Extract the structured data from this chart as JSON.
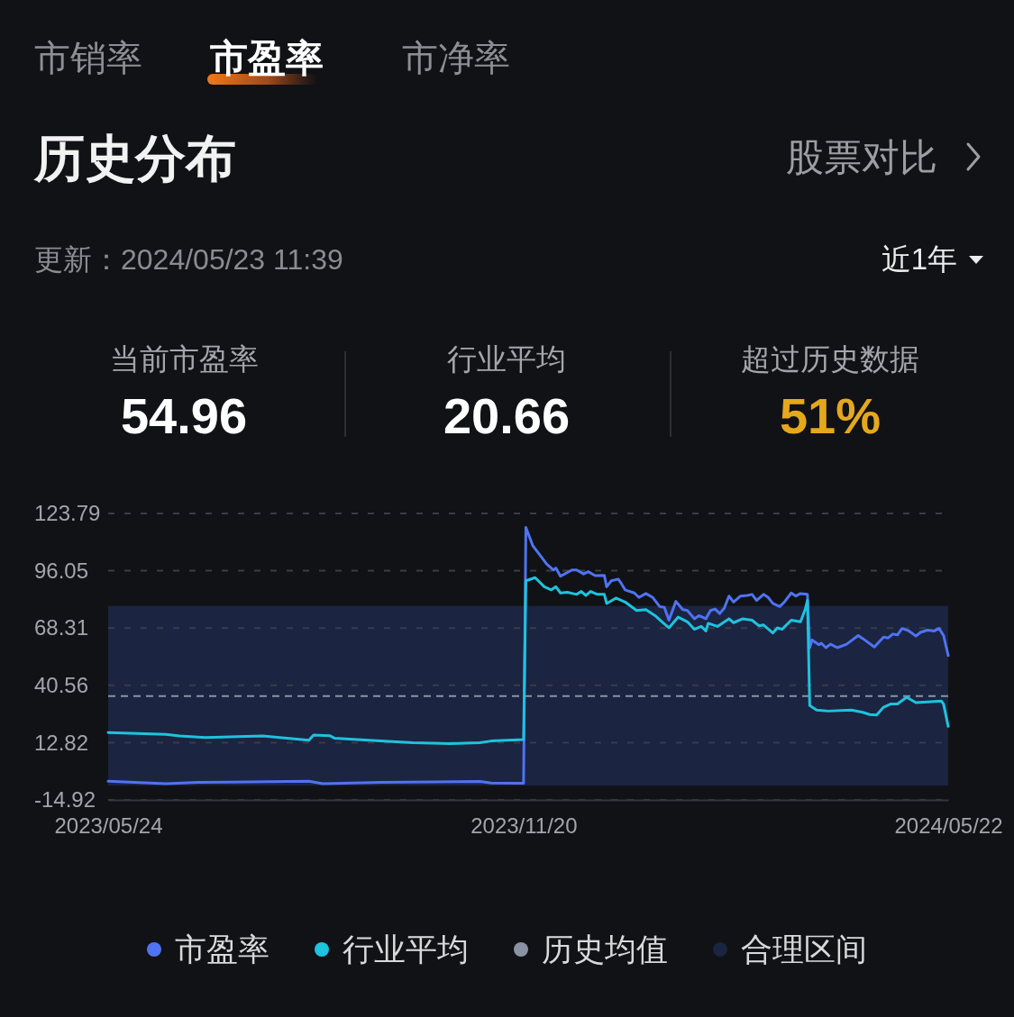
{
  "chart_data": {
    "type": "line",
    "title": "历史分布",
    "annotations": [
      "市销率",
      "市盈率",
      "市净率",
      "股票对比",
      "更新：2024/05/23 11:39",
      "近1年",
      "当前市盈率",
      "54.96",
      "行业平均",
      "20.66",
      "超过历史数据",
      "51%"
    ],
    "xlim": [
      "2023-05-24",
      "2024-05-22"
    ],
    "xticks": [
      {
        "value": "2023-05-24",
        "label": "2023/05/24"
      },
      {
        "value": "2023-11-20",
        "label": "2023/11/20"
      },
      {
        "value": "2024-05-22",
        "label": "2024/05/22"
      }
    ],
    "ylim": [
      -14.92,
      123.79
    ],
    "yticks": [
      -14.92,
      12.82,
      40.56,
      68.31,
      96.05,
      123.79
    ],
    "grid": "y",
    "legend": "bottom",
    "ref_lines": [
      {
        "axis": "y",
        "value": 35.4,
        "label": "历史均值",
        "color": "#8a92a4",
        "line_style": "dashed"
      }
    ],
    "bands": [
      {
        "axis": "y",
        "from": -8,
        "to": 79,
        "label": "合理区间",
        "color": "#1b2441"
      }
    ],
    "series": [
      {
        "name": "市盈率",
        "color": "#4f73f2",
        "x": [
          "2023-05-24",
          "2023-06-18",
          "2023-07-02",
          "2023-08-19",
          "2023-08-25",
          "2023-09-19",
          "2023-11-01",
          "2023-11-06",
          "2023-11-20",
          "2023-11-21",
          "2023-11-24",
          "2023-11-27",
          "2023-11-30",
          "2023-12-03",
          "2023-12-04",
          "2023-12-06",
          "2023-12-11",
          "2023-12-13",
          "2023-12-16",
          "2023-12-18",
          "2023-12-21",
          "2023-12-25",
          "2023-12-26",
          "2023-12-28",
          "2023-12-31",
          "2024-01-01",
          "2024-01-03",
          "2024-01-07",
          "2024-01-09",
          "2024-01-12",
          "2024-01-15",
          "2024-01-18",
          "2024-01-20",
          "2024-01-22",
          "2024-01-25",
          "2024-01-28",
          "2024-01-30",
          "2024-02-02",
          "2024-02-04",
          "2024-02-07",
          "2024-02-09",
          "2024-02-11",
          "2024-02-13",
          "2024-02-15",
          "2024-02-17",
          "2024-02-19",
          "2024-02-22",
          "2024-02-25",
          "2024-02-27",
          "2024-02-29",
          "2024-03-03",
          "2024-03-05",
          "2024-03-07",
          "2024-03-10",
          "2024-03-12",
          "2024-03-15",
          "2024-03-17",
          "2024-03-19",
          "2024-03-22",
          "2024-03-23",
          "2024-03-24",
          "2024-03-27",
          "2024-03-28",
          "2024-03-30",
          "2024-04-01",
          "2024-04-04",
          "2024-04-08",
          "2024-04-13",
          "2024-04-15",
          "2024-04-20",
          "2024-04-24",
          "2024-04-26",
          "2024-04-28",
          "2024-04-30",
          "2024-05-02",
          "2024-05-05",
          "2024-05-08",
          "2024-05-10",
          "2024-05-13",
          "2024-05-16",
          "2024-05-18",
          "2024-05-20",
          "2024-05-22"
        ],
        "values": [
          -5.9,
          -7.1,
          -6.4,
          -5.9,
          -7.1,
          -6.4,
          -6.0,
          -6.7,
          -6.9,
          117.0,
          108.2,
          103.8,
          99.3,
          96.4,
          97.4,
          93.4,
          96.4,
          96.4,
          94.5,
          95.6,
          93.7,
          93.8,
          88.3,
          91.2,
          92.0,
          90.5,
          86.8,
          85.3,
          83.1,
          85.0,
          83.1,
          78.7,
          78.3,
          72.1,
          81.2,
          77.2,
          76.8,
          72.8,
          74.3,
          72.8,
          76.8,
          77.5,
          75.3,
          78.0,
          83.8,
          80.9,
          83.8,
          84.1,
          84.6,
          81.7,
          84.6,
          83.1,
          80.2,
          78.7,
          80.9,
          85.3,
          83.8,
          85.0,
          84.6,
          58.8,
          62.5,
          60.2,
          61.0,
          58.8,
          60.5,
          58.8,
          60.5,
          64.7,
          63.2,
          59.1,
          63.9,
          63.5,
          65.4,
          65.0,
          68.1,
          66.9,
          64.4,
          66.2,
          67.3,
          66.9,
          68.1,
          64.7,
          55.0
        ]
      },
      {
        "name": "行业平均",
        "color": "#1ec3dd",
        "x": [
          "2023-05-24",
          "2023-06-18",
          "2023-06-24",
          "2023-07-05",
          "2023-07-30",
          "2023-08-19",
          "2023-08-21",
          "2023-08-28",
          "2023-08-30",
          "2023-09-19",
          "2023-10-03",
          "2023-10-19",
          "2023-11-01",
          "2023-11-06",
          "2023-11-20",
          "2023-11-21",
          "2023-11-25",
          "2023-11-29",
          "2023-12-02",
          "2023-12-04",
          "2023-12-06",
          "2023-12-09",
          "2023-12-13",
          "2023-12-15",
          "2023-12-17",
          "2023-12-19",
          "2023-12-22",
          "2023-12-25",
          "2023-12-26",
          "2023-12-30",
          "2024-01-03",
          "2024-01-08",
          "2024-01-12",
          "2024-01-16",
          "2024-01-19",
          "2024-01-22",
          "2024-01-26",
          "2024-01-30",
          "2024-02-02",
          "2024-02-05",
          "2024-02-07",
          "2024-02-08",
          "2024-02-12",
          "2024-02-17",
          "2024-02-19",
          "2024-02-23",
          "2024-02-27",
          "2024-03-01",
          "2024-03-03",
          "2024-03-07",
          "2024-03-09",
          "2024-03-11",
          "2024-03-15",
          "2024-03-19",
          "2024-03-21",
          "2024-03-22",
          "2024-03-23",
          "2024-03-26",
          "2024-03-31",
          "2024-04-10",
          "2024-04-15",
          "2024-04-18",
          "2024-04-21",
          "2024-04-24",
          "2024-04-27",
          "2024-04-30",
          "2024-05-04",
          "2024-05-08",
          "2024-05-13",
          "2024-05-19",
          "2024-05-20",
          "2024-05-22"
        ],
        "values": [
          17.7,
          16.8,
          16.0,
          15.3,
          16.0,
          14.0,
          16.5,
          16.2,
          15.0,
          13.6,
          12.8,
          12.3,
          12.8,
          13.6,
          14.3,
          91.2,
          92.7,
          88.3,
          86.8,
          88.3,
          85.3,
          85.6,
          84.6,
          86.0,
          84.1,
          86.0,
          84.6,
          84.6,
          80.2,
          82.8,
          80.9,
          76.8,
          77.2,
          74.3,
          71.3,
          68.4,
          73.6,
          71.3,
          67.7,
          69.1,
          66.9,
          70.6,
          69.1,
          72.8,
          70.9,
          72.8,
          72.1,
          69.4,
          69.8,
          65.9,
          68.4,
          67.7,
          72.1,
          71.3,
          77.2,
          81.7,
          30.8,
          28.6,
          28.1,
          28.6,
          27.5,
          26.4,
          26.2,
          30.0,
          31.5,
          31.5,
          34.8,
          32.2,
          32.5,
          33.0,
          31.5,
          20.7
        ]
      }
    ]
  }
}
